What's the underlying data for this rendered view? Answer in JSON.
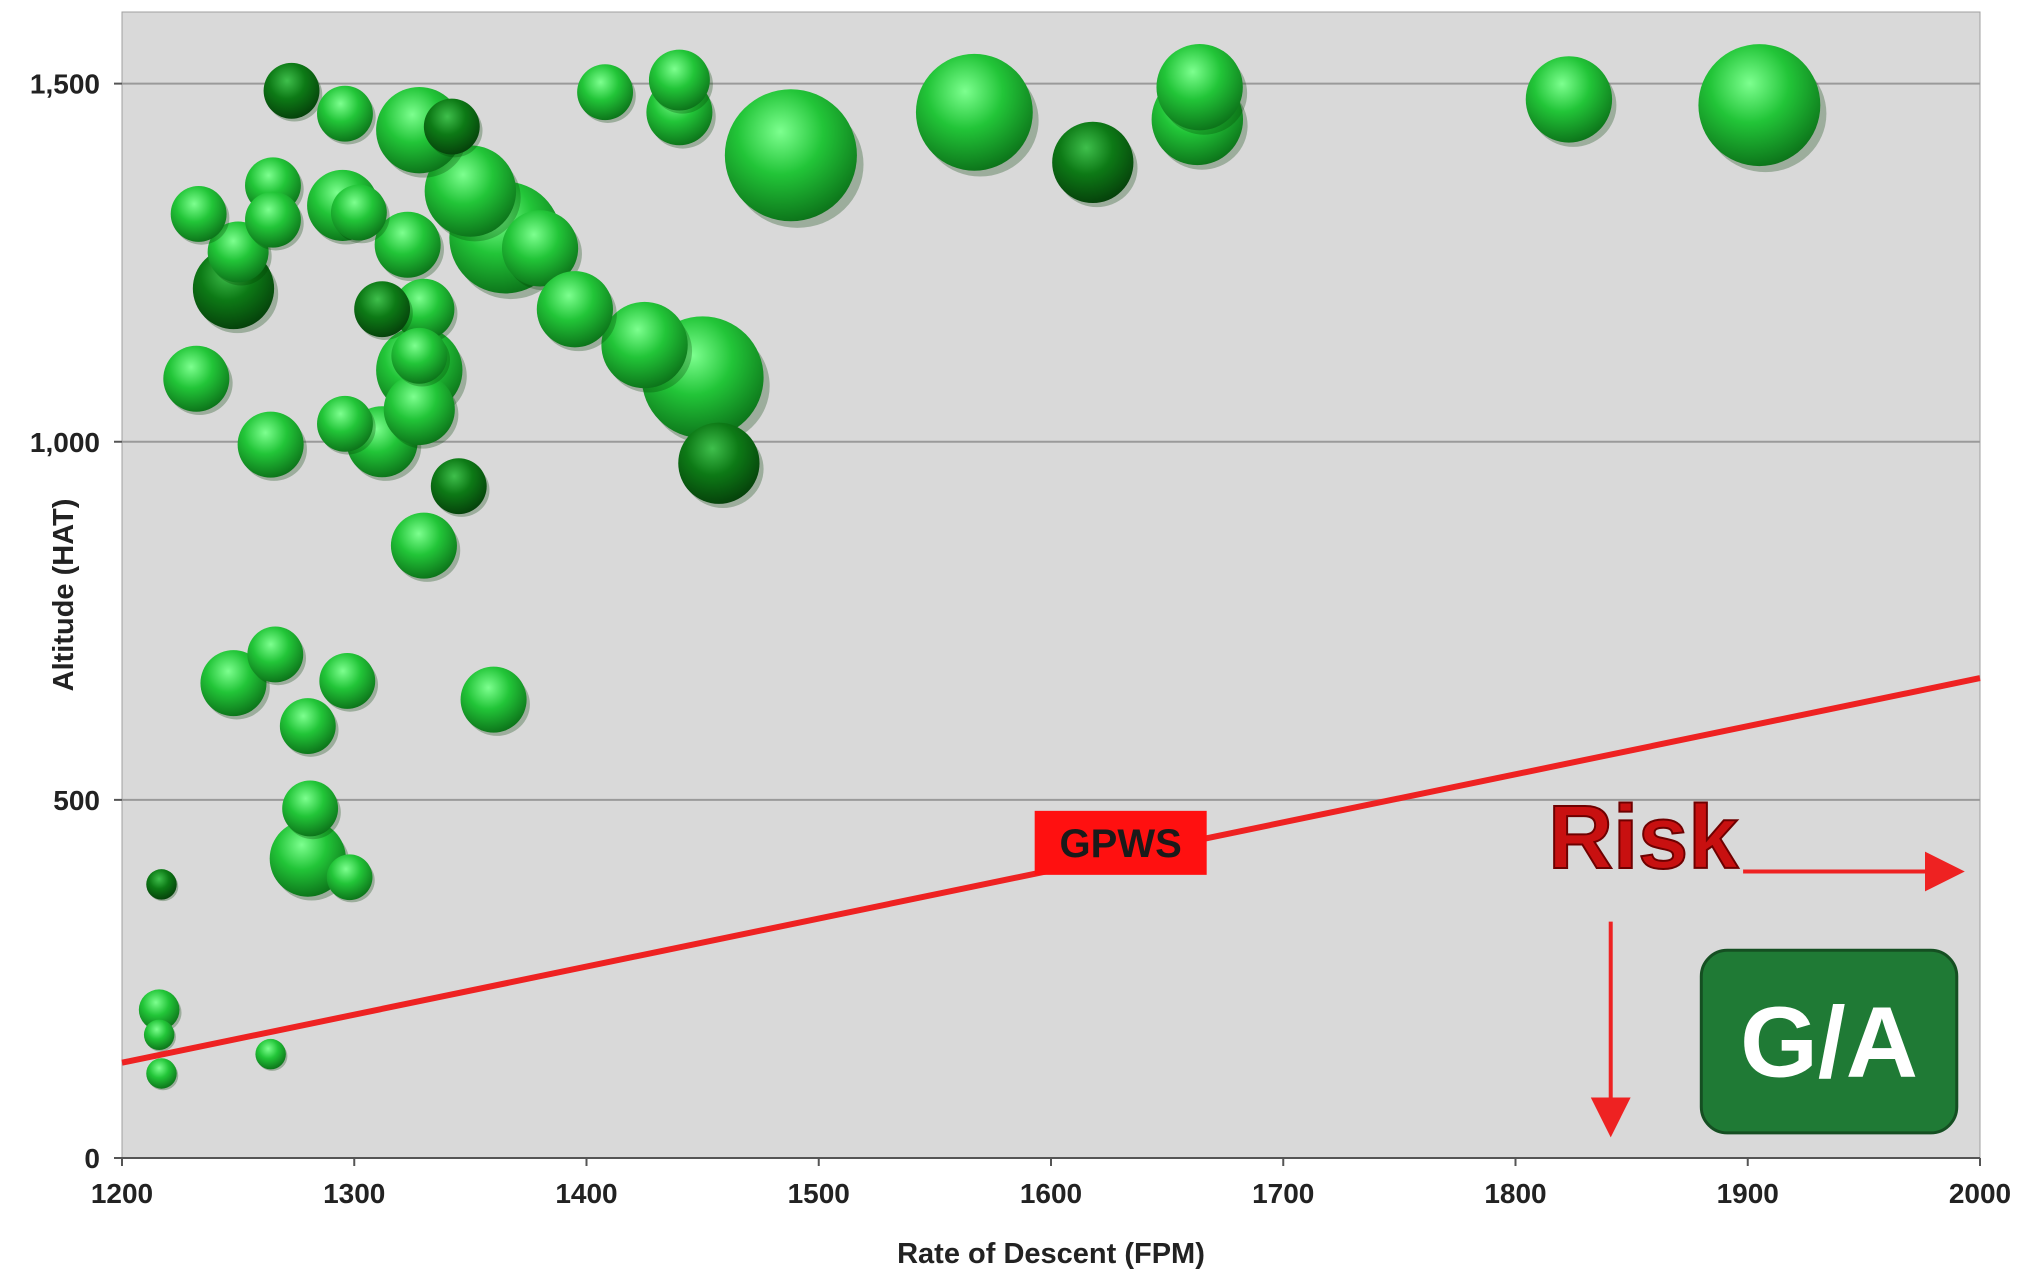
{
  "chart_data": {
    "type": "scatter",
    "title": "",
    "xlabel": "Rate of Descent (FPM)",
    "ylabel": "Altitude (HAT)",
    "xlim": [
      1200,
      2000
    ],
    "ylim": [
      0,
      1600
    ],
    "x_ticks": [
      "1200",
      "1300",
      "1400",
      "1500",
      "1600",
      "1700",
      "1800",
      "1900",
      "2000"
    ],
    "y_ticks": [
      "0",
      "500",
      "1,000",
      "1,500"
    ],
    "grid": "horizontal",
    "plot_background": "#d9d9d9",
    "colors": {
      "bubble_light": "#22c538",
      "bubble_dark": "#0d7a16",
      "line": "#ee2222",
      "label_box": "#ff1010",
      "ga_box": "#1f7a35",
      "risk_text": "#c81010"
    },
    "bubbles": [
      {
        "x": 1217,
        "y": 382,
        "size": 12,
        "dark": true
      },
      {
        "x": 1216,
        "y": 207,
        "size": 16,
        "dark": false
      },
      {
        "x": 1216,
        "y": 172,
        "size": 12,
        "dark": false
      },
      {
        "x": 1217,
        "y": 118,
        "size": 12,
        "dark": false
      },
      {
        "x": 1264,
        "y": 145,
        "size": 12,
        "dark": false
      },
      {
        "x": 1232,
        "y": 1088,
        "size": 26,
        "dark": false
      },
      {
        "x": 1233,
        "y": 1318,
        "size": 22,
        "dark": false
      },
      {
        "x": 1248,
        "y": 1214,
        "size": 32,
        "dark": true
      },
      {
        "x": 1250,
        "y": 1265,
        "size": 24,
        "dark": false
      },
      {
        "x": 1265,
        "y": 1358,
        "size": 22,
        "dark": false
      },
      {
        "x": 1265,
        "y": 1310,
        "size": 22,
        "dark": false
      },
      {
        "x": 1264,
        "y": 996,
        "size": 26,
        "dark": false
      },
      {
        "x": 1248,
        "y": 663,
        "size": 26,
        "dark": false
      },
      {
        "x": 1266,
        "y": 703,
        "size": 22,
        "dark": false
      },
      {
        "x": 1280,
        "y": 603,
        "size": 22,
        "dark": false
      },
      {
        "x": 1273,
        "y": 1490,
        "size": 22,
        "dark": true
      },
      {
        "x": 1296,
        "y": 1458,
        "size": 22,
        "dark": false
      },
      {
        "x": 1295,
        "y": 1330,
        "size": 28,
        "dark": false
      },
      {
        "x": 1302,
        "y": 1320,
        "size": 22,
        "dark": false
      },
      {
        "x": 1296,
        "y": 1025,
        "size": 22,
        "dark": false
      },
      {
        "x": 1312,
        "y": 1185,
        "size": 22,
        "dark": true
      },
      {
        "x": 1312,
        "y": 1000,
        "size": 28,
        "dark": false
      },
      {
        "x": 1297,
        "y": 666,
        "size": 22,
        "dark": false
      },
      {
        "x": 1298,
        "y": 392,
        "size": 18,
        "dark": false
      },
      {
        "x": 1281,
        "y": 488,
        "size": 22,
        "dark": false
      },
      {
        "x": 1280,
        "y": 418,
        "size": 30,
        "dark": false
      },
      {
        "x": 1328,
        "y": 1435,
        "size": 34,
        "dark": false
      },
      {
        "x": 1342,
        "y": 1440,
        "size": 22,
        "dark": true
      },
      {
        "x": 1323,
        "y": 1275,
        "size": 26,
        "dark": false
      },
      {
        "x": 1350,
        "y": 1350,
        "size": 36,
        "dark": false
      },
      {
        "x": 1365,
        "y": 1285,
        "size": 44,
        "dark": false
      },
      {
        "x": 1380,
        "y": 1270,
        "size": 30,
        "dark": false
      },
      {
        "x": 1330,
        "y": 1185,
        "size": 24,
        "dark": false
      },
      {
        "x": 1328,
        "y": 1100,
        "size": 34,
        "dark": false
      },
      {
        "x": 1328,
        "y": 1120,
        "size": 22,
        "dark": false
      },
      {
        "x": 1328,
        "y": 1045,
        "size": 28,
        "dark": false
      },
      {
        "x": 1345,
        "y": 938,
        "size": 22,
        "dark": true
      },
      {
        "x": 1330,
        "y": 855,
        "size": 26,
        "dark": false
      },
      {
        "x": 1395,
        "y": 1185,
        "size": 30,
        "dark": false
      },
      {
        "x": 1408,
        "y": 1488,
        "size": 22,
        "dark": false
      },
      {
        "x": 1440,
        "y": 1505,
        "size": 24,
        "dark": false
      },
      {
        "x": 1440,
        "y": 1460,
        "size": 26,
        "dark": false
      },
      {
        "x": 1425,
        "y": 1135,
        "size": 34,
        "dark": false
      },
      {
        "x": 1450,
        "y": 1090,
        "size": 48,
        "dark": false
      },
      {
        "x": 1457,
        "y": 970,
        "size": 32,
        "dark": true
      },
      {
        "x": 1360,
        "y": 640,
        "size": 26,
        "dark": false
      },
      {
        "x": 1488,
        "y": 1400,
        "size": 52,
        "dark": false
      },
      {
        "x": 1567,
        "y": 1460,
        "size": 46,
        "dark": false
      },
      {
        "x": 1618,
        "y": 1390,
        "size": 32,
        "dark": true
      },
      {
        "x": 1663,
        "y": 1450,
        "size": 36,
        "dark": false
      },
      {
        "x": 1664,
        "y": 1495,
        "size": 34,
        "dark": false
      },
      {
        "x": 1823,
        "y": 1478,
        "size": 34,
        "dark": false
      },
      {
        "x": 1905,
        "y": 1470,
        "size": 48,
        "dark": false
      }
    ],
    "threshold_line": {
      "x": [
        1200,
        2000
      ],
      "y": [
        133,
        670
      ],
      "label": "GPWS"
    },
    "annotations": {
      "risk": "Risk",
      "ga": "G/A"
    }
  }
}
